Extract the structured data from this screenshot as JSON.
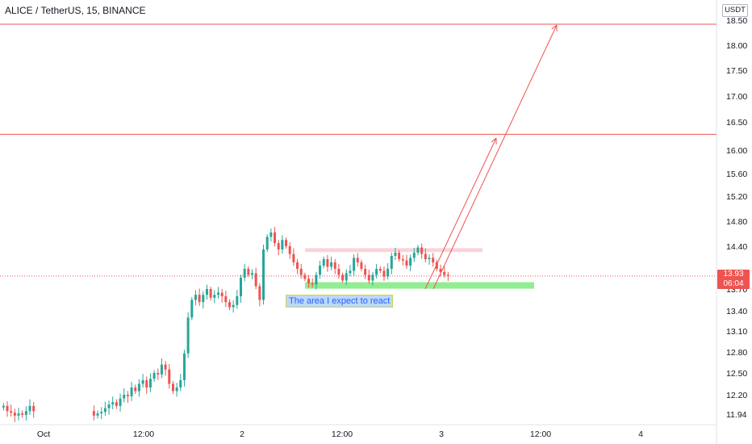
{
  "header": {
    "title": "ALICE / TetherUS, 15, BINANCE"
  },
  "axis": {
    "unit_badge": "USDT"
  },
  "annotation": {
    "text": "The area I expect to react"
  },
  "current_price": {
    "value": "13.93",
    "countdown": "06:04"
  },
  "colors": {
    "up": "#26a69a",
    "down": "#ef5350",
    "level_line": "#ef5350",
    "zone_green": "#90ee90",
    "zone_pink": "#fbd3d8",
    "arrow": "#ef5350"
  },
  "chart_data": {
    "type": "candlestick",
    "title": "ALICE / TetherUS, 15, BINANCE",
    "xlabel": "",
    "ylabel": "",
    "ylim": [
      11.7,
      18.85
    ],
    "y_ticks": [
      "18.50",
      "18.00",
      "17.50",
      "17.00",
      "16.50",
      "16.00",
      "15.60",
      "15.20",
      "14.80",
      "14.40",
      "14.00",
      "13.70",
      "13.40",
      "13.10",
      "12.80",
      "12.50",
      "12.20",
      "11.94"
    ],
    "x_ticks": [
      "Oct",
      "12:00",
      "2",
      "12:00",
      "3",
      "12:00",
      "4"
    ],
    "horizontal_levels": [
      18.42,
      16.28
    ],
    "zones": [
      {
        "name": "pink-zone",
        "low": 14.31,
        "high": 14.37
      },
      {
        "name": "green-zone",
        "low": 13.72,
        "high": 13.82
      }
    ],
    "arrows": [
      {
        "from_x": "Oct 3 ~06:00",
        "from_y": 13.78,
        "to_x": "Oct 3 ~17:30",
        "to_y": 16.25
      },
      {
        "from_x": "Oct 3 ~06:30",
        "from_y": 13.78,
        "to_x": "Oct 3 ~23:00",
        "to_y": 18.45
      }
    ],
    "price_series_close": [
      12.05,
      11.98,
      11.96,
      11.92,
      11.95,
      11.93,
      11.98,
      12.05,
      11.98,
      11.92,
      11.95,
      11.97,
      12.02,
      12.07,
      12.1,
      12.05,
      12.15,
      12.2,
      12.18,
      12.3,
      12.25,
      12.35,
      12.4,
      12.3,
      12.42,
      12.5,
      12.48,
      12.62,
      12.55,
      12.35,
      12.25,
      12.3,
      12.4,
      12.78,
      13.3,
      13.55,
      13.62,
      13.52,
      13.62,
      13.7,
      13.58,
      13.62,
      13.65,
      13.6,
      13.52,
      13.45,
      13.48,
      13.6,
      13.9,
      14.05,
      13.95,
      13.98,
      13.75,
      13.55,
      14.35,
      14.55,
      14.62,
      14.45,
      14.35,
      14.5,
      14.4,
      14.28,
      14.15,
      14.05,
      13.95,
      13.88,
      13.8,
      13.78,
      13.95,
      14.1,
      14.2,
      14.08,
      14.15,
      14.05,
      13.95,
      13.85,
      13.98,
      14.02,
      14.22,
      14.15,
      14.05,
      13.95,
      13.85,
      13.95,
      14.05,
      14.02,
      13.92,
      14.05,
      14.25,
      14.3,
      14.2,
      14.18,
      14.1,
      14.22,
      14.3,
      14.38,
      14.28,
      14.2,
      14.22,
      14.15,
      14.05,
      14.0,
      13.95,
      13.93
    ]
  }
}
